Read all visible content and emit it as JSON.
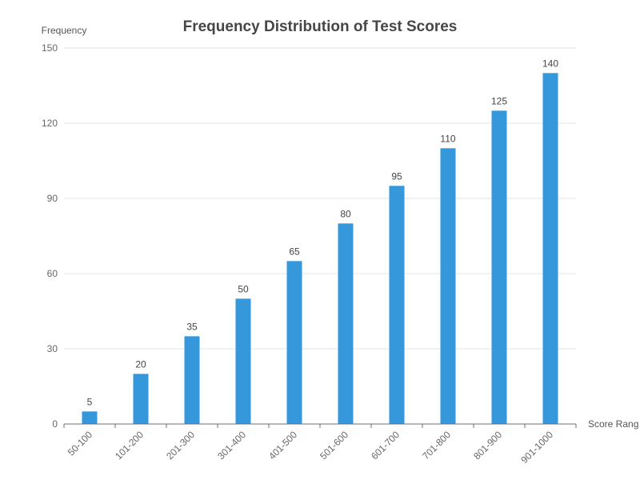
{
  "chart_data": {
    "type": "bar",
    "title": "Frequency Distribution of Test Scores",
    "xlabel": "Score Rang",
    "ylabel": "Frequency",
    "categories": [
      "50-100",
      "101-200",
      "201-300",
      "301-400",
      "401-500",
      "501-600",
      "601-700",
      "701-800",
      "801-900",
      "901-1000"
    ],
    "values": [
      5,
      20,
      35,
      50,
      65,
      80,
      95,
      110,
      125,
      140
    ],
    "ylim": [
      0,
      150
    ],
    "yticks": [
      0,
      30,
      60,
      90,
      120,
      150
    ],
    "grid": true,
    "legend": "none",
    "bar_color": "#3498db"
  }
}
